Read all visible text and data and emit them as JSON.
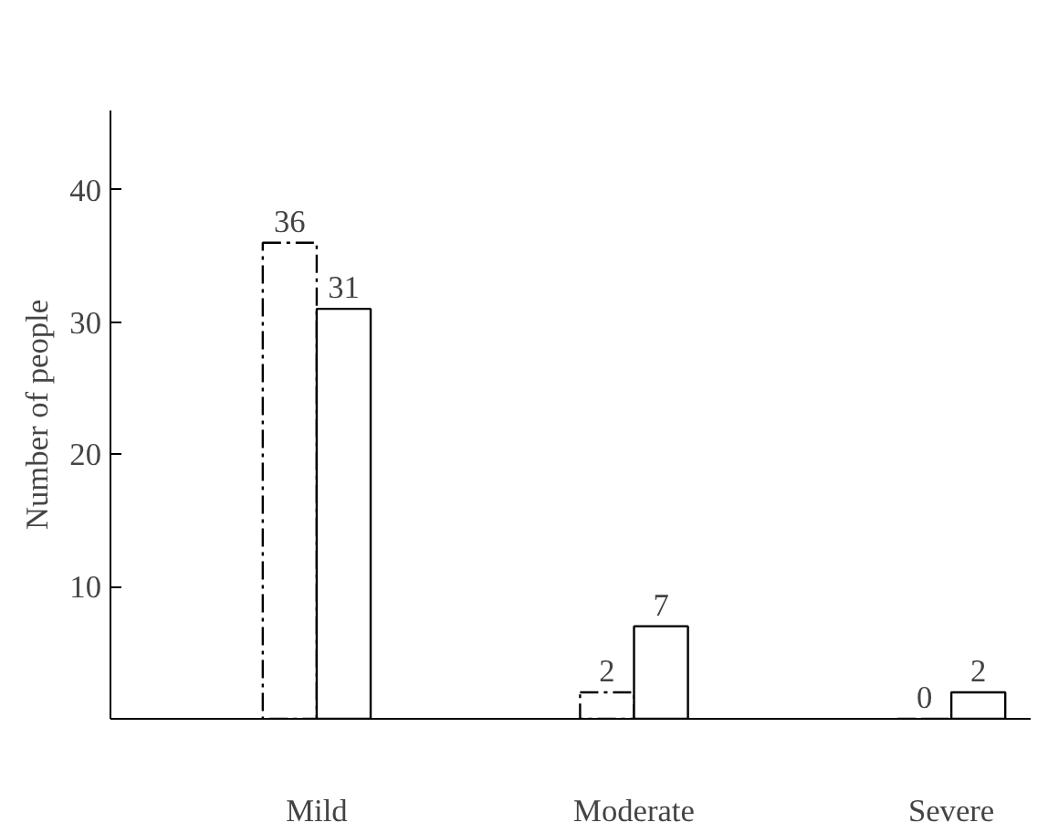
{
  "chart_data": {
    "type": "bar",
    "ylabel": "Number of people",
    "categories": [
      "Mild",
      "Moderate",
      "Severe"
    ],
    "series": [
      {
        "color": "#000000",
        "line_style": "dashed",
        "values": [
          36,
          2,
          0
        ]
      },
      {
        "color": "#000000",
        "line_style": "solid",
        "values": [
          31,
          7,
          2
        ]
      }
    ],
    "ylim": [
      0,
      46
    ],
    "yticks": [
      10,
      20,
      30,
      40
    ],
    "data_labels": true,
    "grid": false
  }
}
